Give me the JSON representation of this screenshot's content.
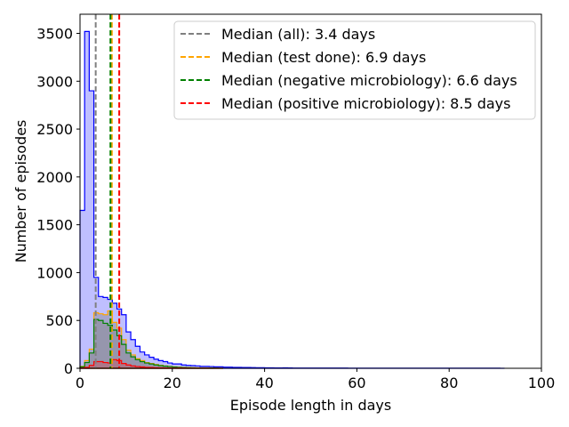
{
  "chart_data": {
    "type": "area",
    "title": "",
    "xlabel": "Episode length in days",
    "ylabel": "Number of episodes",
    "xlim": [
      0,
      100
    ],
    "ylim": [
      0,
      3700
    ],
    "x_ticks": [
      0,
      20,
      40,
      60,
      80,
      100
    ],
    "y_ticks": [
      0,
      500,
      1000,
      1500,
      2000,
      2500,
      3000,
      3500
    ],
    "grid": false,
    "legend_position": "top-right",
    "series": [
      {
        "name": "",
        "style": "step-filled",
        "color": "#0000ff",
        "fill": "#0000ff",
        "fill_opacity": 0.25,
        "x": [
          0,
          1,
          2,
          3,
          4,
          5,
          6,
          7,
          8,
          9,
          10,
          11,
          12,
          13,
          14,
          15,
          16,
          17,
          18,
          19,
          20,
          21,
          22,
          23,
          24,
          25,
          26,
          27,
          28,
          29,
          30,
          31,
          32,
          33,
          34,
          35,
          36,
          37,
          38,
          39,
          40,
          41,
          42,
          43,
          44,
          45,
          46,
          47,
          48,
          49,
          50,
          51,
          52,
          53,
          54,
          55,
          56,
          57,
          58,
          59,
          60,
          61,
          62,
          63,
          64,
          65,
          66,
          67,
          68,
          69,
          70,
          71,
          72,
          73,
          74,
          75,
          76,
          77,
          78,
          79,
          80,
          81,
          82,
          83,
          84,
          85,
          86,
          87,
          88,
          89,
          90,
          91
        ],
        "values": [
          1650,
          3520,
          2900,
          950,
          750,
          740,
          720,
          680,
          620,
          560,
          380,
          300,
          230,
          170,
          140,
          115,
          95,
          80,
          70,
          55,
          45,
          45,
          35,
          30,
          28,
          25,
          20,
          20,
          18,
          15,
          15,
          12,
          12,
          10,
          9,
          8,
          8,
          7,
          6,
          6,
          5,
          5,
          4,
          4,
          5,
          4,
          3,
          3,
          3,
          3,
          2,
          2,
          2,
          2,
          2,
          2,
          2,
          2,
          1,
          1,
          1,
          1,
          1,
          1,
          1,
          1,
          1,
          1,
          1,
          1,
          1,
          1,
          1,
          1,
          1,
          1,
          1,
          1,
          1,
          1,
          1,
          1,
          1,
          1,
          1,
          1,
          1,
          1,
          1,
          1,
          1,
          0
        ]
      },
      {
        "name": "",
        "style": "step-filled",
        "color": "#ffa500",
        "fill": "#808080",
        "fill_opacity": 0.4,
        "x": [
          0,
          1,
          2,
          3,
          4,
          5,
          6,
          7,
          8,
          9,
          10,
          11,
          12,
          13,
          14,
          15,
          16,
          17,
          18,
          19,
          20,
          21,
          22,
          23,
          24,
          25,
          26,
          27,
          28,
          29,
          30
        ],
        "values": [
          20,
          80,
          200,
          580,
          570,
          560,
          600,
          480,
          420,
          300,
          190,
          140,
          100,
          80,
          60,
          50,
          40,
          30,
          25,
          20,
          15,
          12,
          10,
          8,
          6,
          5,
          4,
          3,
          2,
          1,
          0
        ]
      },
      {
        "name": "",
        "style": "step-filled",
        "color": "#008000",
        "fill": "#808080",
        "fill_opacity": 0.4,
        "x": [
          0,
          1,
          2,
          3,
          4,
          5,
          6,
          7,
          8,
          9,
          10,
          11,
          12,
          13,
          14,
          15,
          16,
          17,
          18,
          19,
          20,
          21,
          22,
          23,
          24,
          25,
          26,
          27,
          28,
          29,
          30
        ],
        "values": [
          15,
          60,
          160,
          510,
          500,
          470,
          450,
          400,
          340,
          250,
          160,
          120,
          90,
          70,
          55,
          45,
          35,
          28,
          22,
          18,
          13,
          10,
          8,
          6,
          5,
          4,
          3,
          2,
          2,
          1,
          0
        ]
      },
      {
        "name": "",
        "style": "step-filled",
        "color": "#ff0000",
        "fill": "#ff0000",
        "fill_opacity": 0.2,
        "x": [
          0,
          1,
          2,
          3,
          4,
          5,
          6,
          7,
          8,
          9,
          10,
          11,
          12,
          13,
          14,
          15,
          16,
          17,
          18,
          19,
          20,
          21,
          22,
          23,
          24,
          25,
          26,
          27,
          28,
          29,
          30
        ],
        "values": [
          2,
          10,
          30,
          70,
          70,
          60,
          55,
          90,
          80,
          50,
          35,
          25,
          18,
          14,
          10,
          8,
          6,
          5,
          4,
          3,
          2,
          2,
          2,
          1,
          1,
          1,
          1,
          1,
          0,
          0,
          0
        ]
      }
    ],
    "vlines": [
      {
        "label": "Median (all): 3.4 days",
        "x": 3.4,
        "color": "#808080"
      },
      {
        "label": "Median (test done): 6.9 days",
        "x": 6.9,
        "color": "#ffa500"
      },
      {
        "label": "Median (negative microbiology): 6.6 days",
        "x": 6.6,
        "color": "#008000"
      },
      {
        "label": "Median (positive microbiology): 8.5 days",
        "x": 8.5,
        "color": "#ff0000"
      }
    ]
  }
}
